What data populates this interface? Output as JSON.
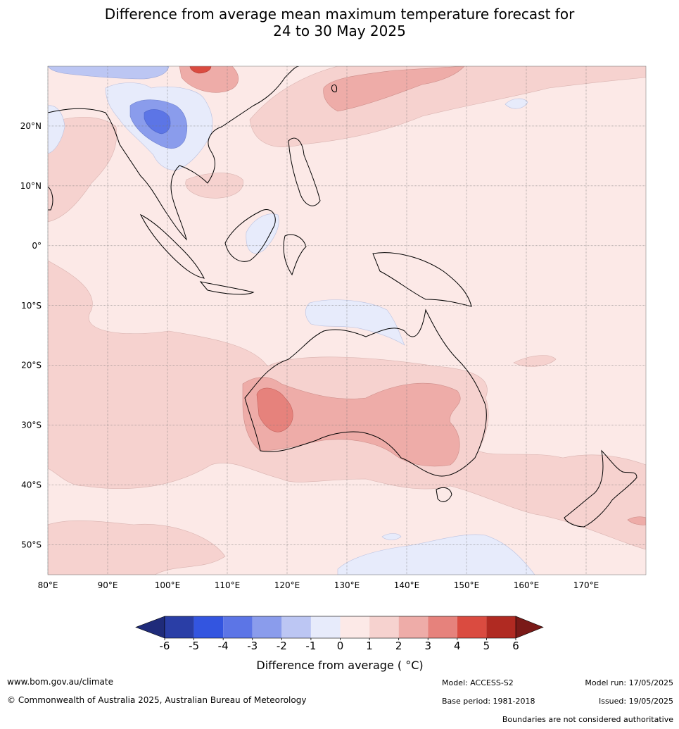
{
  "title": {
    "line1": "Difference from average mean maximum temperature forecast for",
    "line2": "24 to 30 May 2025"
  },
  "map": {
    "lat_ticks": [
      "20°N",
      "10°N",
      "0°",
      "10°S",
      "20°S",
      "30°S",
      "40°S",
      "50°S"
    ],
    "lon_ticks": [
      "80°E",
      "90°E",
      "100°E",
      "110°E",
      "120°E",
      "130°E",
      "140°E",
      "150°E",
      "160°E",
      "170°E"
    ],
    "lat_values": [
      20,
      10,
      0,
      -10,
      -20,
      -30,
      -40,
      -50
    ],
    "lon_values": [
      80,
      90,
      100,
      110,
      120,
      130,
      140,
      150,
      160,
      170
    ],
    "lat_range": [
      -55,
      30
    ],
    "lon_range": [
      80,
      180
    ],
    "grid": true,
    "background_anomaly_band": "0 to 1"
  },
  "colorbar": {
    "label": "Difference from average ( °C)",
    "ticks": [
      "-6",
      "-5",
      "-4",
      "-3",
      "-2",
      "-1",
      "0",
      "1",
      "2",
      "3",
      "4",
      "5",
      "6"
    ],
    "below_color": "#1f2b7a",
    "above_color": "#7a1a18",
    "colors": [
      "#2a3ea6",
      "#3355e0",
      "#5c75e6",
      "#8a9cec",
      "#bcc6f3",
      "#e7ebfb",
      "#fce9e7",
      "#f6d2cf",
      "#eeaca8",
      "#e6827c",
      "#da4b40",
      "#b02a22"
    ]
  },
  "footer": {
    "website": "www.bom.gov.au/climate",
    "copyright": "© Commonwealth of Australia 2025, Australian Bureau of Meteorology",
    "model": "Model: ACCESS-S2",
    "model_run": "Model run: 17/05/2025",
    "base_period": "Base period: 1981-2018",
    "issued": "Issued: 19/05/2025",
    "boundaries": "Boundaries are not considered authoritative"
  }
}
